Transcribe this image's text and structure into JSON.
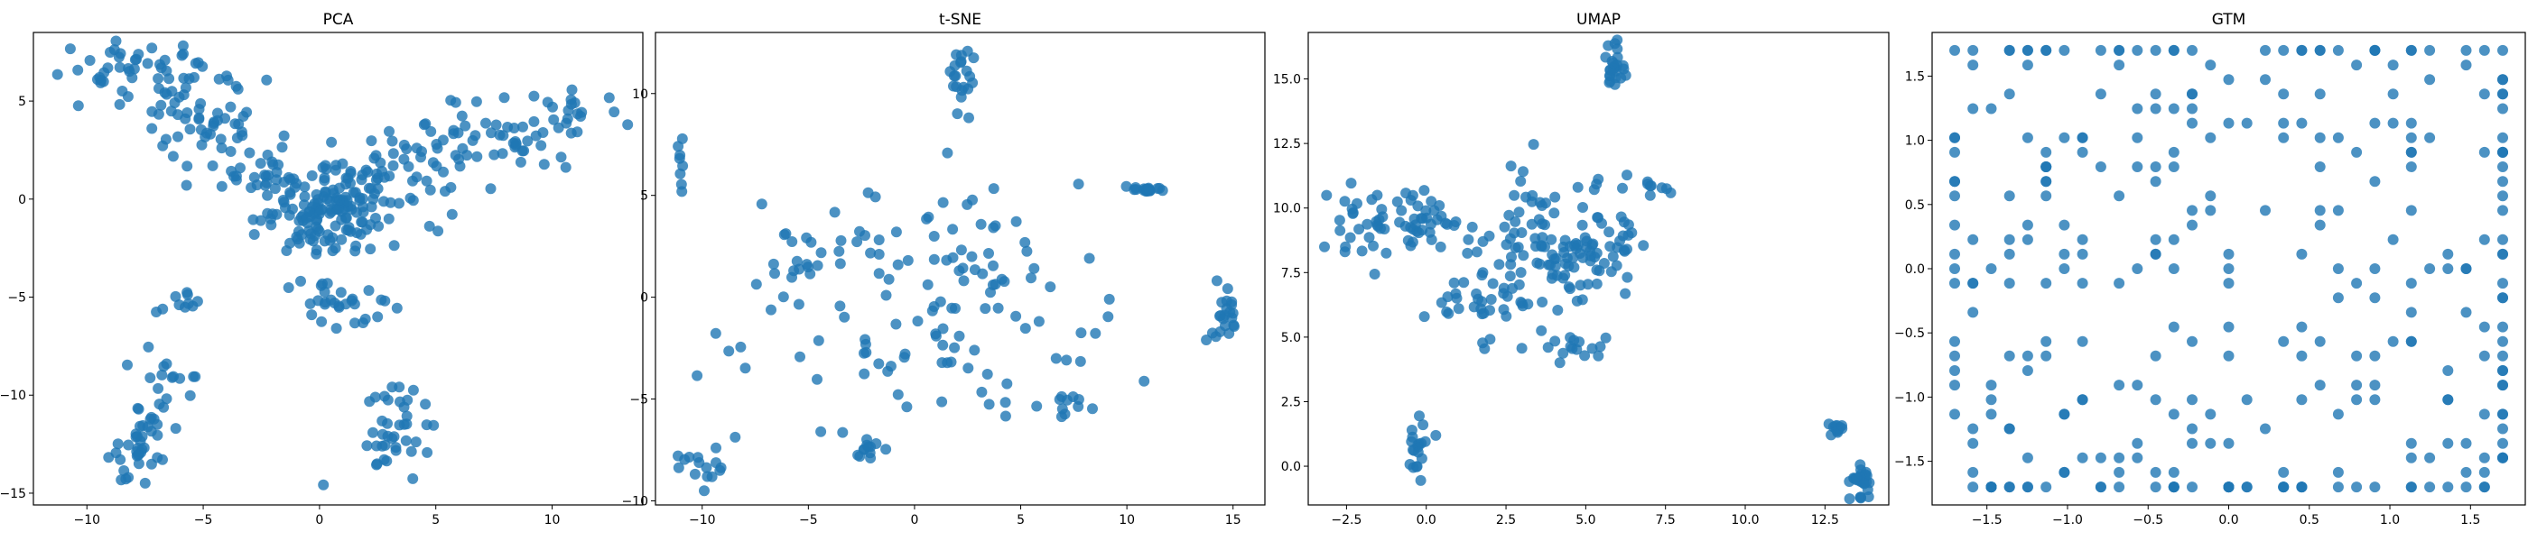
{
  "chart_data": [
    {
      "type": "scatter",
      "title": "PCA",
      "xlabel": "",
      "ylabel": "",
      "xlim": [
        -12.3,
        13.9
      ],
      "ylim": [
        -15.6,
        8.5
      ],
      "xticks": [
        -10,
        -5,
        0,
        5,
        10
      ],
      "yticks": [
        -15,
        -10,
        -5,
        0,
        5
      ],
      "xtick_labels": [
        "−10",
        "−5",
        "0",
        "5",
        "10"
      ],
      "ytick_labels": [
        "−15",
        "−10",
        "−5",
        "0",
        "5"
      ],
      "color": "#1f77b4",
      "clusters": [
        {
          "n": 60,
          "cx": -7.5,
          "cy": 6.3,
          "sx": 2.0,
          "sy": 0.9
        },
        {
          "n": 40,
          "cx": -5.0,
          "cy": 4.0,
          "sx": 1.3,
          "sy": 1.0
        },
        {
          "n": 35,
          "cx": -2.6,
          "cy": 1.8,
          "sx": 1.4,
          "sy": 1.0
        },
        {
          "n": 140,
          "cx": 0.4,
          "cy": -0.6,
          "sx": 1.4,
          "sy": 1.2
        },
        {
          "n": 45,
          "cx": 3.3,
          "cy": 1.3,
          "sx": 1.5,
          "sy": 1.1
        },
        {
          "n": 55,
          "cx": 7.5,
          "cy": 3.2,
          "sx": 1.8,
          "sy": 0.9
        },
        {
          "n": 15,
          "cx": 11.0,
          "cy": 4.8,
          "sx": 1.0,
          "sy": 0.7
        },
        {
          "n": 30,
          "cx": 0.9,
          "cy": -5.4,
          "sx": 1.0,
          "sy": 0.6
        },
        {
          "n": 40,
          "cx": -7.6,
          "cy": -12.4,
          "sx": 0.6,
          "sy": 0.9
        },
        {
          "n": 15,
          "cx": -6.6,
          "cy": -8.8,
          "sx": 0.7,
          "sy": 0.9
        },
        {
          "n": 10,
          "cx": -5.6,
          "cy": -5.3,
          "sx": 0.6,
          "sy": 0.3
        },
        {
          "n": 40,
          "cx": 3.1,
          "cy": -11.8,
          "sx": 0.9,
          "sy": 1.5
        }
      ]
    },
    {
      "type": "scatter",
      "title": "t-SNE",
      "xlabel": "",
      "ylabel": "",
      "xlim": [
        -12.2,
        16.5
      ],
      "ylim": [
        -10.2,
        13.0
      ],
      "xticks": [
        -10,
        -5,
        0,
        5,
        10,
        15
      ],
      "yticks": [
        -10,
        -5,
        0,
        5,
        10
      ],
      "xtick_labels": [
        "−10",
        "−5",
        "0",
        "5",
        "10",
        "15"
      ],
      "ytick_labels": [
        "−10",
        "−5",
        "0",
        "5",
        "10"
      ],
      "color": "#1f77b4",
      "clusters": [
        {
          "n": 20,
          "cx": 2.3,
          "cy": 10.8,
          "sx": 0.25,
          "sy": 0.8
        },
        {
          "n": 20,
          "cx": 10.9,
          "cy": 5.3,
          "sx": 0.4,
          "sy": 0.05
        },
        {
          "n": 22,
          "cx": 14.5,
          "cy": -0.9,
          "sx": 0.3,
          "sy": 0.6
        },
        {
          "n": 15,
          "cx": -10.3,
          "cy": -8.4,
          "sx": 0.6,
          "sy": 0.5
        },
        {
          "n": 8,
          "cx": -11.0,
          "cy": 6.2,
          "sx": 0.15,
          "sy": 0.8
        },
        {
          "n": 130,
          "cx": 0.5,
          "cy": 0.0,
          "sx": 4.0,
          "sy": 3.2
        },
        {
          "n": 10,
          "cx": 7.2,
          "cy": -5.3,
          "sx": 0.6,
          "sy": 0.4
        },
        {
          "n": 12,
          "cx": -2.0,
          "cy": -7.6,
          "sx": 0.3,
          "sy": 0.5
        },
        {
          "n": 12,
          "cx": -5.5,
          "cy": 2.5,
          "sx": 0.8,
          "sy": 1.0
        }
      ]
    },
    {
      "type": "scatter",
      "title": "UMAP",
      "xlabel": "",
      "ylabel": "",
      "xlim": [
        -3.7,
        14.5
      ],
      "ylim": [
        -1.5,
        16.8
      ],
      "xticks": [
        -2.5,
        0.0,
        2.5,
        5.0,
        7.5,
        10.0,
        12.5
      ],
      "yticks": [
        0.0,
        2.5,
        5.0,
        7.5,
        10.0,
        12.5,
        15.0
      ],
      "xtick_labels": [
        "−2.5",
        "0.0",
        "2.5",
        "5.0",
        "7.5",
        "10.0",
        "12.5"
      ],
      "ytick_labels": [
        "0.0",
        "2.5",
        "5.0",
        "7.5",
        "10.0",
        "12.5",
        "15.0"
      ],
      "color": "#1f77b4",
      "clusters": [
        {
          "n": 25,
          "cx": 5.9,
          "cy": 15.4,
          "sx": 0.2,
          "sy": 0.4
        },
        {
          "n": 40,
          "cx": -1.7,
          "cy": 9.2,
          "sx": 0.9,
          "sy": 0.8
        },
        {
          "n": 25,
          "cx": 0.0,
          "cy": 9.5,
          "sx": 0.4,
          "sy": 0.4
        },
        {
          "n": 40,
          "cx": 2.4,
          "cy": 8.0,
          "sx": 0.8,
          "sy": 1.5
        },
        {
          "n": 90,
          "cx": 4.3,
          "cy": 8.5,
          "sx": 0.9,
          "sy": 1.2
        },
        {
          "n": 15,
          "cx": 4.6,
          "cy": 4.6,
          "sx": 0.4,
          "sy": 0.3
        },
        {
          "n": 15,
          "cx": 6.2,
          "cy": 8.6,
          "sx": 0.2,
          "sy": 0.6
        },
        {
          "n": 8,
          "cx": 7.2,
          "cy": 10.9,
          "sx": 0.2,
          "sy": 0.15
        },
        {
          "n": 20,
          "cx": -0.2,
          "cy": 0.7,
          "sx": 0.2,
          "sy": 0.5
        },
        {
          "n": 12,
          "cx": 12.9,
          "cy": 1.5,
          "sx": 0.15,
          "sy": 0.1
        },
        {
          "n": 30,
          "cx": 13.6,
          "cy": -0.6,
          "sx": 0.2,
          "sy": 0.35
        },
        {
          "n": 20,
          "cx": 1.8,
          "cy": 6.2,
          "sx": 0.8,
          "sy": 0.3
        }
      ]
    },
    {
      "type": "scatter",
      "title": "GTM",
      "xlabel": "",
      "ylabel": "",
      "xlim": [
        -1.84,
        1.84
      ],
      "ylim": [
        -1.84,
        1.84
      ],
      "xticks": [
        -1.5,
        -1.0,
        -0.5,
        0.0,
        0.5,
        1.0,
        1.5
      ],
      "yticks": [
        -1.5,
        -1.0,
        -0.5,
        0.0,
        0.5,
        1.0,
        1.5
      ],
      "xtick_labels": [
        "−1.5",
        "−1.0",
        "−0.5",
        "0.0",
        "0.5",
        "1.0",
        "1.5"
      ],
      "ytick_labels": [
        "−1.5",
        "−1.0",
        "−0.5",
        "0.0",
        "0.5",
        "1.0",
        "1.5"
      ],
      "color": "#1f77b4",
      "grid_range": [
        -1.7,
        1.7
      ],
      "grid_points": 320,
      "grid_steps": 30
    }
  ]
}
